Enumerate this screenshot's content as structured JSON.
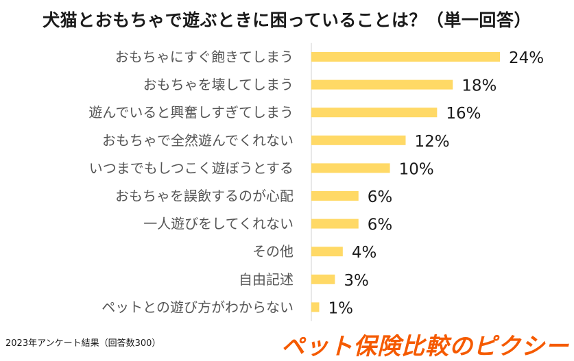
{
  "chart_data": {
    "type": "bar",
    "orientation": "horizontal",
    "title": "犬猫とおもちゃで遊ぶときに困っていることは？（単一回答）",
    "categories": [
      "おもちゃにすぐ飽きてしまう",
      "おもちゃを壊してしまう",
      "遊んでいると興奮しすぎてしまう",
      "おもちゃで全然遊んでくれない",
      "いつまでもしつこく遊ぼうとする",
      "おもちゃを誤飲するのが心配",
      "一人遊びをしてくれない",
      "その他",
      "自由記述",
      "ペットとの遊び方がわからない"
    ],
    "values": [
      24,
      18,
      16,
      12,
      10,
      6,
      6,
      4,
      3,
      1
    ],
    "value_labels": [
      "24%",
      "18%",
      "16%",
      "12%",
      "10%",
      "6%",
      "6%",
      "4%",
      "3%",
      "1%"
    ],
    "unit": "%",
    "xlim": [
      0,
      24
    ],
    "grid": false,
    "bar_color": "#FFD966"
  },
  "footnote": "2023年アンケート結果（回答数300）",
  "brand": "ペット保険比較のピクシー",
  "colors": {
    "bar": "#FFD966",
    "brand": "#F55A00",
    "text": "#1a1a1a",
    "category_text": "#555555"
  }
}
